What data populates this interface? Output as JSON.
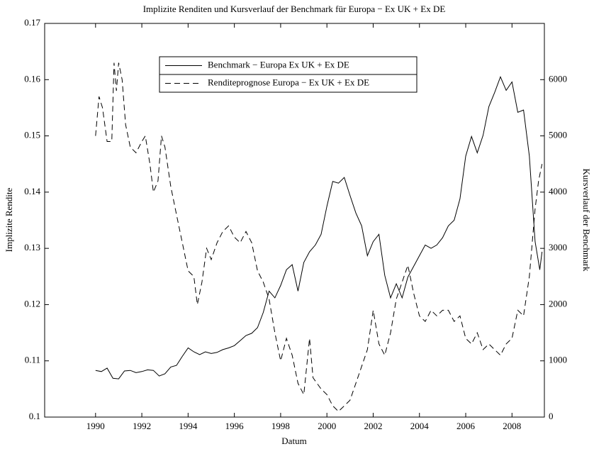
{
  "chart_data": {
    "type": "line",
    "title": "Implizite Renditen und Kursverlauf der Benchmark für Europa − Ex UK + Ex DE",
    "xlabel": "Datum",
    "ylabel": "Implizite Rendite",
    "y2label": "Kursverlauf der Benchmark",
    "xlim": [
      1987.8,
      2009.4
    ],
    "xticks": [
      1990,
      1992,
      1994,
      1996,
      1998,
      2000,
      2002,
      2004,
      2006,
      2008
    ],
    "ylim": [
      0.1,
      0.17
    ],
    "yticks": [
      0.1,
      0.11,
      0.12,
      0.13,
      0.14,
      0.15,
      0.16,
      0.17
    ],
    "y2lim": [
      0,
      7000
    ],
    "y2ticks": [
      0,
      1000,
      2000,
      3000,
      4000,
      5000,
      6000
    ],
    "legend": "upper center",
    "series": [
      {
        "name": "Benchmark − Europa Ex UK + Ex DE",
        "color": "#000000",
        "linestyle": "solid",
        "axis": "y2",
        "x": [
          1990.0,
          1990.25,
          1990.5,
          1990.75,
          1991.0,
          1991.25,
          1991.5,
          1991.75,
          1992.0,
          1992.25,
          1992.5,
          1992.75,
          1993.0,
          1993.25,
          1993.5,
          1993.75,
          1994.0,
          1994.25,
          1994.5,
          1994.75,
          1995.0,
          1995.25,
          1995.5,
          1995.75,
          1996.0,
          1996.25,
          1996.5,
          1996.75,
          1997.0,
          1997.25,
          1997.5,
          1997.75,
          1998.0,
          1998.25,
          1998.5,
          1998.75,
          1999.0,
          1999.25,
          1999.5,
          1999.75,
          2000.0,
          2000.25,
          2000.5,
          2000.75,
          2001.0,
          2001.25,
          2001.5,
          2001.75,
          2002.0,
          2002.25,
          2002.5,
          2002.75,
          2003.0,
          2003.25,
          2003.5,
          2003.75,
          2004.0,
          2004.25,
          2004.5,
          2004.75,
          2005.0,
          2005.25,
          2005.5,
          2005.75,
          2006.0,
          2006.25,
          2006.5,
          2006.75,
          2007.0,
          2007.25,
          2007.5,
          2007.75,
          2008.0,
          2008.25,
          2008.5,
          2008.75,
          2009.0,
          2009.2,
          2009.3
        ],
        "values": [
          830,
          810,
          870,
          690,
          680,
          820,
          830,
          790,
          810,
          840,
          830,
          730,
          770,
          890,
          920,
          1080,
          1230,
          1160,
          1110,
          1160,
          1130,
          1150,
          1200,
          1230,
          1270,
          1360,
          1450,
          1490,
          1590,
          1860,
          2240,
          2120,
          2340,
          2620,
          2710,
          2240,
          2750,
          2940,
          3060,
          3250,
          3750,
          4190,
          4160,
          4260,
          3940,
          3630,
          3400,
          2870,
          3120,
          3250,
          2520,
          2120,
          2370,
          2120,
          2490,
          2680,
          2870,
          3060,
          3000,
          3060,
          3190,
          3400,
          3500,
          3880,
          4640,
          4990,
          4700,
          5010,
          5520,
          5770,
          6050,
          5810,
          5960,
          5420,
          5460,
          4640,
          3120,
          2620,
          2940
        ]
      },
      {
        "name": "Renditeprognose Europa − Ex UK + Ex DE",
        "color": "#000000",
        "linestyle": "dashed",
        "axis": "y",
        "x": [
          1990.0,
          1990.15,
          1990.3,
          1990.5,
          1990.7,
          1990.8,
          1990.9,
          1991.0,
          1991.15,
          1991.3,
          1991.5,
          1991.75,
          1992.0,
          1992.15,
          1992.35,
          1992.5,
          1992.7,
          1992.85,
          1993.0,
          1993.25,
          1993.5,
          1993.75,
          1994.0,
          1994.25,
          1994.4,
          1994.6,
          1994.8,
          1995.0,
          1995.25,
          1995.5,
          1995.75,
          1996.0,
          1996.25,
          1996.5,
          1996.75,
          1997.0,
          1997.25,
          1997.5,
          1997.75,
          1998.0,
          1998.25,
          1998.5,
          1998.75,
          1999.0,
          1999.25,
          1999.4,
          1999.75,
          2000.0,
          2000.25,
          2000.5,
          2000.75,
          2001.0,
          2001.25,
          2001.5,
          2001.75,
          2002.0,
          2002.25,
          2002.5,
          2002.75,
          2003.0,
          2003.25,
          2003.5,
          2003.75,
          2004.0,
          2004.25,
          2004.5,
          2004.75,
          2005.0,
          2005.25,
          2005.5,
          2005.75,
          2006.0,
          2006.25,
          2006.5,
          2006.75,
          2007.0,
          2007.25,
          2007.5,
          2007.75,
          2008.0,
          2008.25,
          2008.5,
          2008.75,
          2009.0,
          2009.15,
          2009.3
        ],
        "values": [
          0.15,
          0.157,
          0.155,
          0.149,
          0.149,
          0.163,
          0.158,
          0.163,
          0.16,
          0.152,
          0.148,
          0.147,
          0.149,
          0.15,
          0.145,
          0.14,
          0.142,
          0.15,
          0.148,
          0.141,
          0.136,
          0.131,
          0.126,
          0.125,
          0.12,
          0.124,
          0.13,
          0.128,
          0.131,
          0.133,
          0.134,
          0.132,
          0.131,
          0.133,
          0.131,
          0.126,
          0.124,
          0.121,
          0.115,
          0.11,
          0.114,
          0.111,
          0.106,
          0.104,
          0.114,
          0.107,
          0.105,
          0.104,
          0.102,
          0.101,
          0.102,
          0.103,
          0.106,
          0.109,
          0.112,
          0.119,
          0.113,
          0.111,
          0.115,
          0.121,
          0.124,
          0.127,
          0.122,
          0.118,
          0.117,
          0.119,
          0.118,
          0.119,
          0.119,
          0.117,
          0.118,
          0.114,
          0.113,
          0.115,
          0.112,
          0.113,
          0.112,
          0.111,
          0.113,
          0.114,
          0.119,
          0.118,
          0.125,
          0.137,
          0.142,
          0.145
        ]
      }
    ]
  }
}
